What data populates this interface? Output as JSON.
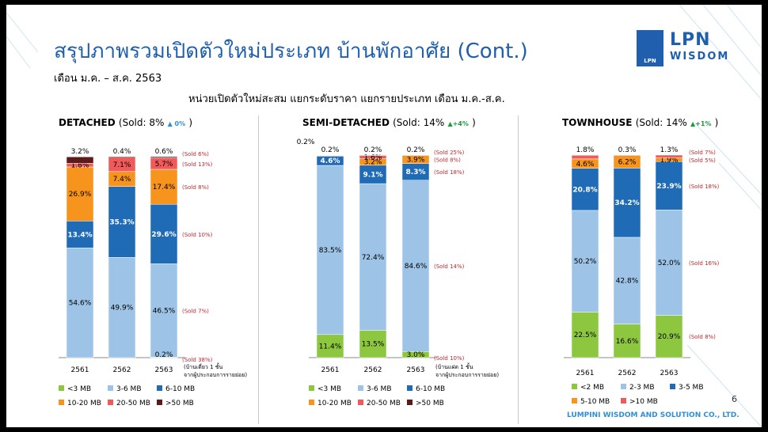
{
  "header": {
    "title": "สรุปภาพรวมเปิดตัวใหม่ประเภท บ้านพักอาศัย (Cont.)",
    "subtitle": "เดือน ม.ค. – ส.ค. 2563",
    "headline": "หน่วยเปิดตัวใหม่สะสม แยกระดับราคา แยกรายประเภท เดือน ม.ค.-ส.ค."
  },
  "logo": {
    "box_label": "LPN",
    "line1": "LPN",
    "line2": "WISDOM"
  },
  "page_number": "6",
  "footer": "LUMPINI WISDOM AND SOLUTION CO., LTD.",
  "colors": {
    "light_green": "#8dc63f",
    "light_blue": "#9dc3e6",
    "mid_blue": "#1f6bb5",
    "orange": "#f7941d",
    "red": "#f05a5a",
    "dark_brown": "#5c1a1a"
  },
  "chart_data": [
    {
      "type": "bar",
      "stacked": true,
      "title": "DETACHED",
      "sold_text": "(Sold: 8%",
      "change": "0%",
      "change_close": ")",
      "categories": [
        "2561",
        "2562",
        "2563"
      ],
      "series": [
        {
          "name": "<3 MB",
          "color": "#8dc63f",
          "values": [
            0,
            0,
            0.2
          ],
          "labels": [
            "",
            "",
            ""
          ]
        },
        {
          "name": "3-6 MB",
          "color": "#9dc3e6",
          "values": [
            54.6,
            49.9,
            46.5
          ],
          "labels": [
            "54.6%",
            "49.9%",
            "46.5%"
          ]
        },
        {
          "name": "6-10 MB",
          "color": "#1f6bb5",
          "values": [
            13.4,
            35.3,
            29.6
          ],
          "labels": [
            "13.4%",
            "35.3%",
            "29.6%"
          ]
        },
        {
          "name": "10-20 MB",
          "color": "#f7941d",
          "values": [
            26.9,
            7.4,
            17.4
          ],
          "labels": [
            "26.9%",
            "7.4%",
            "17.4%"
          ]
        },
        {
          "name": "20-50 MB",
          "color": "#f05a5a",
          "values": [
            1.8,
            7.1,
            5.7
          ],
          "labels": [
            "1.8%",
            "7.1%",
            "5.7%"
          ]
        },
        {
          "name": ">50 MB",
          "color": "#5c1a1a",
          "values": [
            3.2,
            0.4,
            0.6
          ],
          "labels": [
            "",
            "",
            ""
          ]
        }
      ],
      "top_labels": [
        "3.2%",
        "0.4%",
        "0.6%"
      ],
      "bottom_labels": [
        "",
        "",
        "0.2%"
      ],
      "sold_notes": [
        {
          "series": ">50 MB",
          "text": "(Sold 6%)"
        },
        {
          "series": "20-50 MB",
          "text": "(Sold 13%)"
        },
        {
          "series": "10-20 MB",
          "text": "(Sold 8%)"
        },
        {
          "series": "6-10 MB",
          "text": "(Sold 10%)"
        },
        {
          "series": "3-6 MB",
          "text": "(Sold 7%)"
        },
        {
          "series": "<3 MB",
          "text": "(Sold 38%)"
        }
      ],
      "footnote": [
        "(บ้านเดี่ยว 1 ชั้น",
        "จากผู้ประกอบการรายย่อย)"
      ],
      "ylim": [
        0,
        100
      ]
    },
    {
      "type": "bar",
      "stacked": true,
      "title": "SEMI-DETACHED",
      "sold_text": "(Sold: 14%",
      "change": "+4%",
      "change_close": ")",
      "categories": [
        "2561",
        "2562",
        "2563"
      ],
      "series": [
        {
          "name": "<3 MB",
          "color": "#8dc63f",
          "values": [
            11.4,
            13.5,
            3.0
          ],
          "labels": [
            "11.4%",
            "13.5%",
            ""
          ]
        },
        {
          "name": "3-6 MB",
          "color": "#9dc3e6",
          "values": [
            83.5,
            72.4,
            84.6
          ],
          "labels": [
            "83.5%",
            "72.4%",
            "84.6%"
          ]
        },
        {
          "name": "6-10 MB",
          "color": "#1f6bb5",
          "values": [
            4.6,
            9.1,
            8.3
          ],
          "labels": [
            "4.6%",
            "9.1%",
            "8.3%"
          ]
        },
        {
          "name": "10-20 MB",
          "color": "#f7941d",
          "values": [
            0.2,
            3.2,
            3.9
          ],
          "labels": [
            "",
            "3.2%",
            "3.9%"
          ]
        },
        {
          "name": "20-50 MB",
          "color": "#f05a5a",
          "values": [
            0.2,
            1.6,
            0
          ],
          "labels": [
            "",
            "1.6%",
            ""
          ]
        },
        {
          "name": ">50 MB",
          "color": "#5c1a1a",
          "values": [
            0,
            0.2,
            0.2
          ],
          "labels": [
            "",
            "",
            ""
          ]
        }
      ],
      "top_labels": [
        "0.2%",
        "0.2%",
        "0.2%"
      ],
      "extra_top_labels": [
        "0.2%",
        "",
        ""
      ],
      "bottom_labels": [
        "",
        "",
        "3.0%"
      ],
      "sold_notes": [
        {
          "series": ">50 MB",
          "text": "(Sold 25%)"
        },
        {
          "series": "10-20 MB",
          "text": "(Sold 8%)"
        },
        {
          "series": "6-10 MB",
          "text": "(Sold 18%)"
        },
        {
          "series": "3-6 MB",
          "text": "(Sold 14%)"
        },
        {
          "series": "<3 MB",
          "text": "(Sold 10%)"
        }
      ],
      "footnote": [
        "(บ้านแฝด 1 ชั้น",
        "จากผู้ประกอบการรายย่อย)"
      ],
      "ylim": [
        0,
        100
      ]
    },
    {
      "type": "bar",
      "stacked": true,
      "title": "TOWNHOUSE",
      "sold_text": "(Sold: 14%",
      "change": "+1%",
      "change_close": ")",
      "categories": [
        "2561",
        "2562",
        "2563"
      ],
      "series": [
        {
          "name": "<2 MB",
          "color": "#8dc63f",
          "values": [
            22.5,
            16.6,
            20.9
          ],
          "labels": [
            "22.5%",
            "16.6%",
            "20.9%"
          ]
        },
        {
          "name": "2-3 MB",
          "color": "#9dc3e6",
          "values": [
            50.2,
            42.8,
            52.0
          ],
          "labels": [
            "50.2%",
            "42.8%",
            "52.0%"
          ]
        },
        {
          "name": "3-5 MB",
          "color": "#1f6bb5",
          "values": [
            20.8,
            34.2,
            23.9
          ],
          "labels": [
            "20.8%",
            "34.2%",
            "23.9%"
          ]
        },
        {
          "name": "5-10 MB",
          "color": "#f7941d",
          "values": [
            4.6,
            6.2,
            1.9
          ],
          "labels": [
            "4.6%",
            "6.2%",
            "1.9%"
          ]
        },
        {
          "name": ">10 MB",
          "color": "#f05a5a",
          "values": [
            1.8,
            0.3,
            1.3
          ],
          "labels": [
            "",
            "",
            ""
          ]
        }
      ],
      "top_labels": [
        "1.8%",
        "0.3%",
        "1.3%"
      ],
      "bottom_labels": [
        "",
        "",
        ""
      ],
      "sold_notes": [
        {
          "series": ">10 MB",
          "text": "(Sold 7%)"
        },
        {
          "series": "5-10 MB",
          "text": "(Sold 5%)"
        },
        {
          "series": "3-5 MB",
          "text": "(Sold 18%)"
        },
        {
          "series": "2-3 MB",
          "text": "(Sold 16%)"
        },
        {
          "series": "<2 MB",
          "text": "(Sold 8%)"
        }
      ],
      "footnote": [],
      "ylim": [
        0,
        100
      ]
    }
  ]
}
